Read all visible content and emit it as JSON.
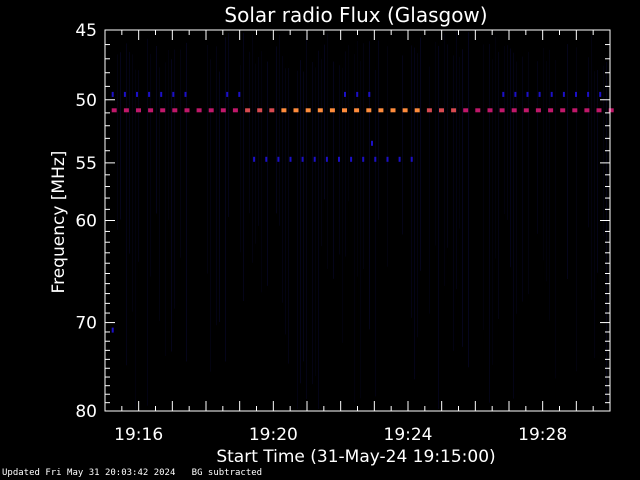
{
  "chart_data": {
    "type": "heatmap",
    "title": "Solar radio Flux (Glasgow)",
    "xlabel": "Start Time (31-May-24 19:15:00)",
    "ylabel": "Frequency [MHz]",
    "x_unit": "minutes after 19:15:00",
    "xlim": [
      0,
      15
    ],
    "ylim": [
      80,
      45
    ],
    "y_scale": "log",
    "x_ticks": [
      {
        "value": 1,
        "label": "19:16"
      },
      {
        "value": 5,
        "label": "19:20"
      },
      {
        "value": 9,
        "label": "19:24"
      },
      {
        "value": 13,
        "label": "19:28"
      }
    ],
    "y_ticks": [
      {
        "value": 45,
        "label": "45"
      },
      {
        "value": 50,
        "label": "50"
      },
      {
        "value": 55,
        "label": "55"
      },
      {
        "value": 60,
        "label": "60"
      },
      {
        "value": 70,
        "label": "70"
      },
      {
        "value": 80,
        "label": "80"
      }
    ],
    "bands": [
      {
        "freq": 50.8,
        "intensity": "strong",
        "t_start": 0.2,
        "t_end": 15.0
      },
      {
        "freq": 49.6,
        "intensity": "weak",
        "t_start": 0.2,
        "t_end": 2.6
      },
      {
        "freq": 49.6,
        "intensity": "weak",
        "t_start": 3.6,
        "t_end": 4.1
      },
      {
        "freq": 49.6,
        "intensity": "weak",
        "t_start": 7.1,
        "t_end": 8.1
      },
      {
        "freq": 49.6,
        "intensity": "weak",
        "t_start": 11.8,
        "t_end": 15.0
      },
      {
        "freq": 54.7,
        "intensity": "weak",
        "t_start": 4.4,
        "t_end": 9.4
      },
      {
        "freq": 53.4,
        "intensity": "weak",
        "t_start": 7.9,
        "t_end": 8.1
      },
      {
        "freq": 70.8,
        "intensity": "weak",
        "t_start": 0.2,
        "t_end": 0.4
      }
    ],
    "peak_interval": [
      4.0,
      10.6
    ],
    "colors": {
      "background": "#000000",
      "noise": "#05051c",
      "weak": "#1c10c8",
      "mid": "#c0186a",
      "strong": "#ff8c3c",
      "axis": "#ffffff"
    }
  },
  "footer": {
    "updated": "Updated Fri May 31 20:03:42 2024",
    "note": "BG subtracted"
  }
}
